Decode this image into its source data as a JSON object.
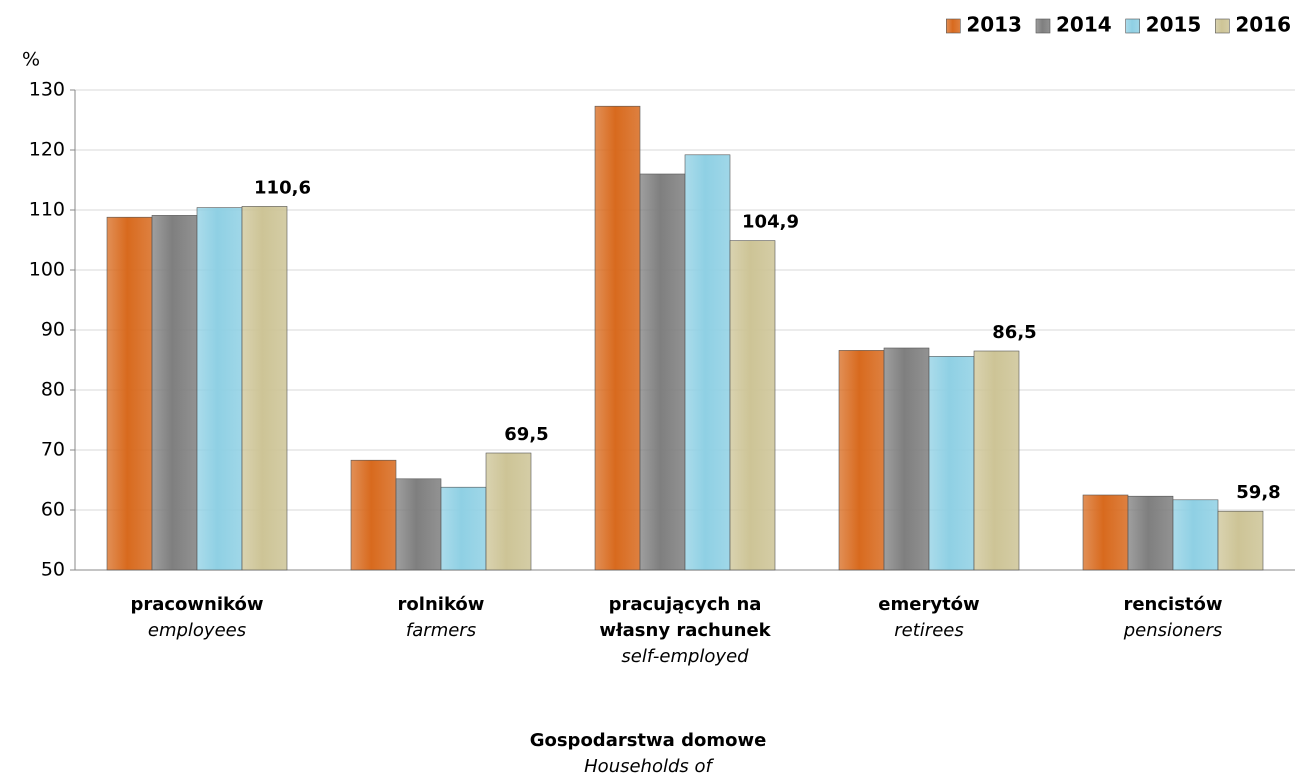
{
  "chart_data": {
    "type": "bar",
    "y_unit": "%",
    "x_axis_title": "Gospodarstwa domowe",
    "x_axis_subtitle": "Households of",
    "categories": [
      "pracowników",
      "rolników",
      "pracujących na własny rachunek",
      "emerytów",
      "rencistów"
    ],
    "categories_en": [
      "employees",
      "farmers",
      "self-employed",
      "retirees",
      "pensioners"
    ],
    "series": [
      {
        "name": "2013",
        "color": "#d86a1e",
        "values": [
          108.8,
          68.3,
          127.3,
          86.6,
          62.5
        ]
      },
      {
        "name": "2014",
        "color": "#7f7f7f",
        "values": [
          109.1,
          65.2,
          116.0,
          87.0,
          62.3
        ]
      },
      {
        "name": "2015",
        "color": "#8fd0e4",
        "values": [
          110.4,
          63.8,
          119.2,
          85.6,
          61.7
        ]
      },
      {
        "name": "2016",
        "color": "#cdc496",
        "values": [
          110.6,
          69.5,
          104.9,
          86.5,
          59.8
        ],
        "value_labels": [
          "110,6",
          "69,5",
          "104,9",
          "86,5",
          "59,8"
        ]
      }
    ],
    "ylim": [
      50,
      130
    ],
    "yticks": [
      50,
      60,
      70,
      80,
      90,
      100,
      110,
      120,
      130
    ],
    "grid": true,
    "legend": "top-right"
  }
}
